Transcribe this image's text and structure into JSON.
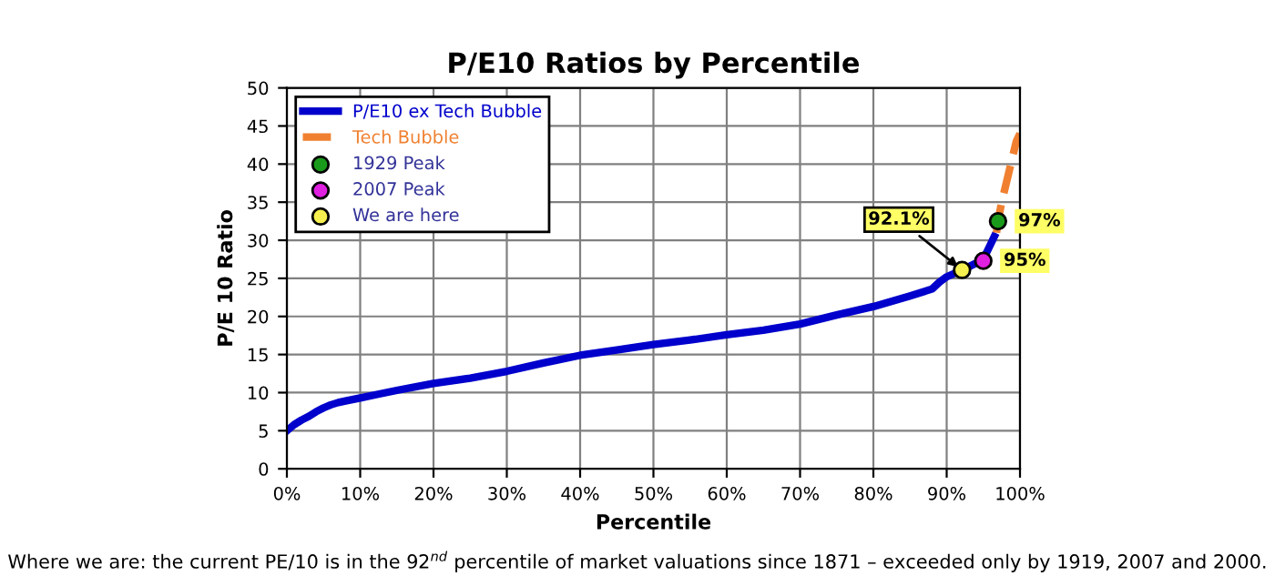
{
  "chart_data": {
    "type": "line",
    "title": "P/E10 Ratios by Percentile",
    "xlabel": "Percentile",
    "ylabel": "P/E 10 Ratio",
    "xlim": [
      0,
      100
    ],
    "xticks": [
      {
        "value": 0,
        "label": "0%"
      },
      {
        "value": 10,
        "label": "10%"
      },
      {
        "value": 20,
        "label": "20%"
      },
      {
        "value": 30,
        "label": "30%"
      },
      {
        "value": 40,
        "label": "40%"
      },
      {
        "value": 50,
        "label": "50%"
      },
      {
        "value": 60,
        "label": "60%"
      },
      {
        "value": 70,
        "label": "70%"
      },
      {
        "value": 80,
        "label": "80%"
      },
      {
        "value": 90,
        "label": "90%"
      },
      {
        "value": 100,
        "label": "100%"
      }
    ],
    "ylim": [
      0,
      50
    ],
    "yticks": [
      0,
      5,
      10,
      15,
      20,
      25,
      30,
      35,
      40,
      45,
      50
    ],
    "grid": true,
    "legend": "top left",
    "series": [
      {
        "name": "P/E10 ex Tech Bubble",
        "color": "#0000cc",
        "line_style": "solid",
        "marker": "none",
        "x": [
          0,
          1,
          2,
          3,
          4,
          5,
          6,
          7,
          8,
          10,
          12,
          15,
          20,
          25,
          30,
          35,
          40,
          45,
          50,
          55,
          60,
          65,
          70,
          75,
          80,
          85,
          88,
          89,
          90,
          92.1,
          94,
          95,
          96,
          96.5
        ],
        "values": [
          5,
          5.8,
          6.4,
          6.9,
          7.5,
          8,
          8.4,
          8.7,
          8.9,
          9.3,
          9.7,
          10.3,
          11.2,
          11.9,
          12.8,
          13.9,
          14.9,
          15.6,
          16.3,
          16.9,
          17.6,
          18.2,
          19,
          20.2,
          21.3,
          22.7,
          23.6,
          24.5,
          25.2,
          26.1,
          27,
          27.5,
          29.5,
          30.5
        ]
      },
      {
        "name": "Tech Bubble",
        "color": "#f08030",
        "line_style": "dashed",
        "marker": "none",
        "x": [
          96.8,
          97,
          97.5,
          98,
          98.5,
          99,
          99.5,
          100
        ],
        "values": [
          31,
          32.5,
          35,
          37,
          39,
          41,
          43,
          44
        ]
      },
      {
        "name": "1929 Peak",
        "type": "scatter",
        "color": "#1a9a1a",
        "marker": "circle",
        "x": [
          97
        ],
        "values": [
          32.5
        ]
      },
      {
        "name": "2007 Peak",
        "type": "scatter",
        "color": "#e020e0",
        "marker": "circle",
        "x": [
          95
        ],
        "values": [
          27.3
        ]
      },
      {
        "name": "We are here",
        "type": "scatter",
        "color": "#f5f050",
        "marker": "circle",
        "x": [
          92.1
        ],
        "values": [
          26.1
        ]
      }
    ],
    "annotations": [
      {
        "text": "97%",
        "x": 97,
        "y": 32.5
      },
      {
        "text": "95%",
        "x": 95,
        "y": 27.3
      },
      {
        "text": "92.1%",
        "x": 92.1,
        "y": 26.1
      },
      "Where we are: the current PE/10 is in the 92$^{nd}$ percentile of market valuations since 1871 – exceeded only by 1919, 2007 and 2000."
    ]
  }
}
